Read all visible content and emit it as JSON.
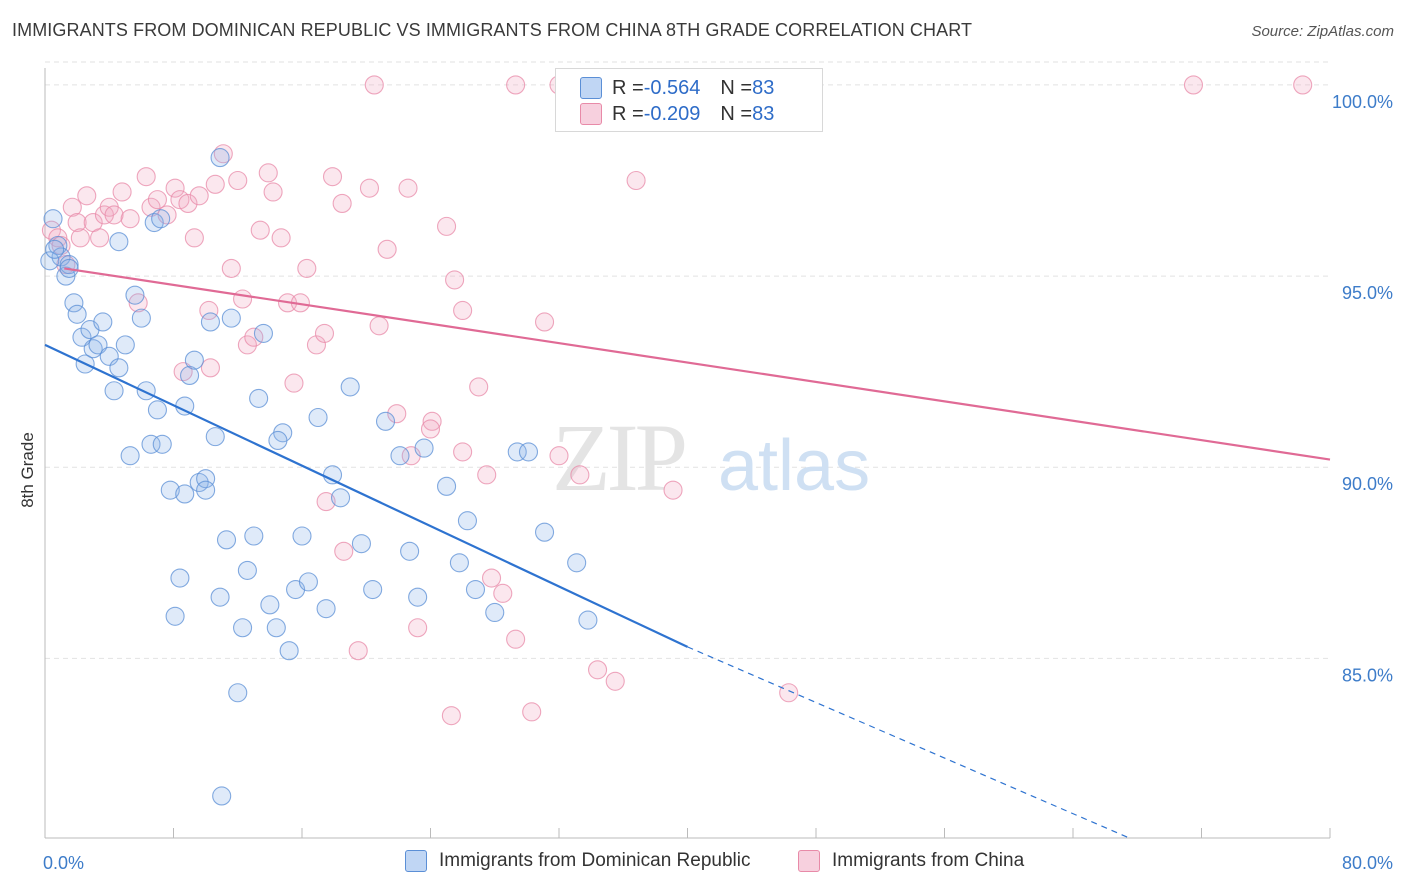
{
  "header": {
    "title": "IMMIGRANTS FROM DOMINICAN REPUBLIC VS IMMIGRANTS FROM CHINA 8TH GRADE CORRELATION CHART",
    "source": "Source: ZipAtlas.com"
  },
  "legend_top": {
    "rows": [
      {
        "r_label": "R = ",
        "r_value": "-0.564",
        "n_label": "N = ",
        "n_value": "83"
      },
      {
        "r_label": "R = ",
        "r_value": "-0.209",
        "n_label": "N = ",
        "n_value": "83"
      }
    ]
  },
  "legend_bottom": {
    "items": [
      "Immigrants from Dominican Republic",
      "Immigrants from China"
    ]
  },
  "watermark": {
    "zip": "ZIP",
    "atlas": "atlas"
  },
  "colors": {
    "blue": "#5b8fd6",
    "blue_fill": "rgba(140,180,235,0.28)",
    "blue_line": "#2e73d0",
    "pink": "#e88aa8",
    "pink_fill": "rgba(240,170,195,0.28)",
    "pink_line": "#e06a95",
    "axis_text": "#3d7cc9",
    "grid": "#e2e2e2"
  },
  "chart_data": {
    "type": "scatter",
    "title": "IMMIGRANTS FROM DOMINICAN REPUBLIC VS IMMIGRANTS FROM CHINA 8TH GRADE CORRELATION CHART",
    "xlabel": "",
    "ylabel": "8th Grade",
    "xlim": [
      0,
      80
    ],
    "ylim": [
      80.3,
      100.6
    ],
    "x_tick_labels": [
      "0.0%",
      "80.0%"
    ],
    "y_ticks": [
      85,
      90,
      95,
      100
    ],
    "y_tick_labels": [
      "85.0%",
      "90.0%",
      "95.0%",
      "100.0%"
    ],
    "series": [
      {
        "name": "Immigrants from Dominican Republic",
        "r": -0.564,
        "n": 83,
        "trend": {
          "x_start": 0,
          "y_start": 93.2,
          "x_solid_end": 40,
          "y_solid_end": 85.3,
          "x_dash_end": 67.5,
          "y_dash_end": 80.3
        },
        "points": [
          [
            0.5,
            96.5
          ],
          [
            0.8,
            95.8
          ],
          [
            1.0,
            95.5
          ],
          [
            1.3,
            95.0
          ],
          [
            1.5,
            95.3
          ],
          [
            0.3,
            95.4
          ],
          [
            1.8,
            94.3
          ],
          [
            2.0,
            94.0
          ],
          [
            2.3,
            93.4
          ],
          [
            2.5,
            92.7
          ],
          [
            2.8,
            93.6
          ],
          [
            3.0,
            93.1
          ],
          [
            3.3,
            93.2
          ],
          [
            3.6,
            93.8
          ],
          [
            4.0,
            92.9
          ],
          [
            4.3,
            92.0
          ],
          [
            4.6,
            92.6
          ],
          [
            5.0,
            93.2
          ],
          [
            5.3,
            90.3
          ],
          [
            5.6,
            94.5
          ],
          [
            6.0,
            93.9
          ],
          [
            6.3,
            92.0
          ],
          [
            6.6,
            90.6
          ],
          [
            7.0,
            91.5
          ],
          [
            7.3,
            90.6
          ],
          [
            7.8,
            89.4
          ],
          [
            8.1,
            86.1
          ],
          [
            8.4,
            87.1
          ],
          [
            8.7,
            91.6
          ],
          [
            9.0,
            92.4
          ],
          [
            9.3,
            92.8
          ],
          [
            9.6,
            89.6
          ],
          [
            10.0,
            89.7
          ],
          [
            10.3,
            93.8
          ],
          [
            10.6,
            90.8
          ],
          [
            10.9,
            86.6
          ],
          [
            11.3,
            88.1
          ],
          [
            11.6,
            93.9
          ],
          [
            12.0,
            84.1
          ],
          [
            12.3,
            85.8
          ],
          [
            12.6,
            87.3
          ],
          [
            13.0,
            88.2
          ],
          [
            13.3,
            91.8
          ],
          [
            13.6,
            93.5
          ],
          [
            14.0,
            86.4
          ],
          [
            14.4,
            85.8
          ],
          [
            14.8,
            90.9
          ],
          [
            15.2,
            85.2
          ],
          [
            15.6,
            86.8
          ],
          [
            16.0,
            88.2
          ],
          [
            16.4,
            87.0
          ],
          [
            17.0,
            91.3
          ],
          [
            17.5,
            86.3
          ],
          [
            17.9,
            89.8
          ],
          [
            18.4,
            89.2
          ],
          [
            19.0,
            92.1
          ],
          [
            19.7,
            88.0
          ],
          [
            20.4,
            86.8
          ],
          [
            21.2,
            91.2
          ],
          [
            22.1,
            90.3
          ],
          [
            22.7,
            87.8
          ],
          [
            23.2,
            86.6
          ],
          [
            23.6,
            90.5
          ],
          [
            25.0,
            89.5
          ],
          [
            25.8,
            87.5
          ],
          [
            26.3,
            88.6
          ],
          [
            26.8,
            86.8
          ],
          [
            28.0,
            86.2
          ],
          [
            29.4,
            90.4
          ],
          [
            30.1,
            90.4
          ],
          [
            31.1,
            88.3
          ],
          [
            33.1,
            87.5
          ],
          [
            33.8,
            86.0
          ],
          [
            6.8,
            96.4
          ],
          [
            7.2,
            96.5
          ],
          [
            4.6,
            95.9
          ],
          [
            10.9,
            98.1
          ],
          [
            14.5,
            90.7
          ],
          [
            11.0,
            81.4
          ],
          [
            8.7,
            89.3
          ],
          [
            10.0,
            89.4
          ],
          [
            1.5,
            95.2
          ],
          [
            0.6,
            95.7
          ]
        ]
      },
      {
        "name": "Immigrants from China",
        "r": -0.209,
        "n": 83,
        "trend": {
          "x_start": 1.2,
          "y_start": 95.2,
          "x_end": 80,
          "y_end": 90.2
        },
        "points": [
          [
            0.4,
            96.2
          ],
          [
            0.8,
            96.0
          ],
          [
            1.0,
            95.8
          ],
          [
            1.3,
            95.3
          ],
          [
            1.7,
            96.8
          ],
          [
            2.0,
            96.4
          ],
          [
            2.6,
            97.1
          ],
          [
            3.0,
            96.4
          ],
          [
            3.4,
            96.0
          ],
          [
            3.7,
            96.6
          ],
          [
            4.0,
            96.8
          ],
          [
            4.3,
            96.6
          ],
          [
            4.8,
            97.2
          ],
          [
            5.3,
            96.5
          ],
          [
            5.8,
            94.3
          ],
          [
            6.3,
            97.6
          ],
          [
            6.6,
            96.8
          ],
          [
            7.0,
            97.0
          ],
          [
            7.6,
            96.6
          ],
          [
            8.1,
            97.3
          ],
          [
            8.4,
            97.0
          ],
          [
            8.9,
            96.9
          ],
          [
            9.3,
            96.0
          ],
          [
            9.6,
            97.1
          ],
          [
            10.2,
            94.1
          ],
          [
            10.6,
            97.4
          ],
          [
            11.1,
            98.2
          ],
          [
            11.6,
            95.2
          ],
          [
            12.0,
            97.5
          ],
          [
            12.3,
            94.4
          ],
          [
            12.6,
            93.2
          ],
          [
            13.0,
            93.4
          ],
          [
            13.4,
            96.2
          ],
          [
            13.9,
            97.7
          ],
          [
            14.2,
            97.2
          ],
          [
            14.7,
            96.0
          ],
          [
            15.1,
            94.3
          ],
          [
            15.5,
            92.2
          ],
          [
            15.9,
            94.3
          ],
          [
            16.3,
            95.2
          ],
          [
            16.9,
            93.2
          ],
          [
            17.4,
            93.5
          ],
          [
            17.9,
            97.6
          ],
          [
            18.5,
            96.9
          ],
          [
            19.5,
            85.2
          ],
          [
            20.2,
            97.3
          ],
          [
            20.8,
            93.7
          ],
          [
            21.3,
            95.7
          ],
          [
            21.9,
            91.4
          ],
          [
            22.6,
            97.3
          ],
          [
            23.2,
            85.8
          ],
          [
            24.1,
            91.2
          ],
          [
            25.0,
            96.3
          ],
          [
            25.5,
            94.9
          ],
          [
            26.0,
            94.1
          ],
          [
            27.0,
            92.1
          ],
          [
            27.5,
            89.8
          ],
          [
            28.5,
            86.7
          ],
          [
            29.3,
            85.5
          ],
          [
            30.3,
            83.6
          ],
          [
            31.1,
            93.8
          ],
          [
            32.0,
            90.3
          ],
          [
            33.3,
            89.8
          ],
          [
            34.4,
            84.7
          ],
          [
            35.5,
            84.4
          ],
          [
            36.8,
            97.5
          ],
          [
            39.1,
            89.4
          ],
          [
            46.3,
            84.1
          ],
          [
            20.5,
            100.0
          ],
          [
            29.3,
            100.0
          ],
          [
            32.0,
            100.0
          ],
          [
            71.5,
            100.0
          ],
          [
            78.3,
            100.0
          ],
          [
            8.6,
            92.5
          ],
          [
            10.3,
            92.6
          ],
          [
            17.5,
            89.1
          ],
          [
            18.6,
            87.8
          ],
          [
            22.8,
            90.3
          ],
          [
            24.0,
            91.0
          ],
          [
            26.0,
            90.4
          ],
          [
            25.3,
            83.5
          ],
          [
            27.8,
            87.1
          ],
          [
            2.2,
            96.0
          ]
        ]
      }
    ]
  }
}
